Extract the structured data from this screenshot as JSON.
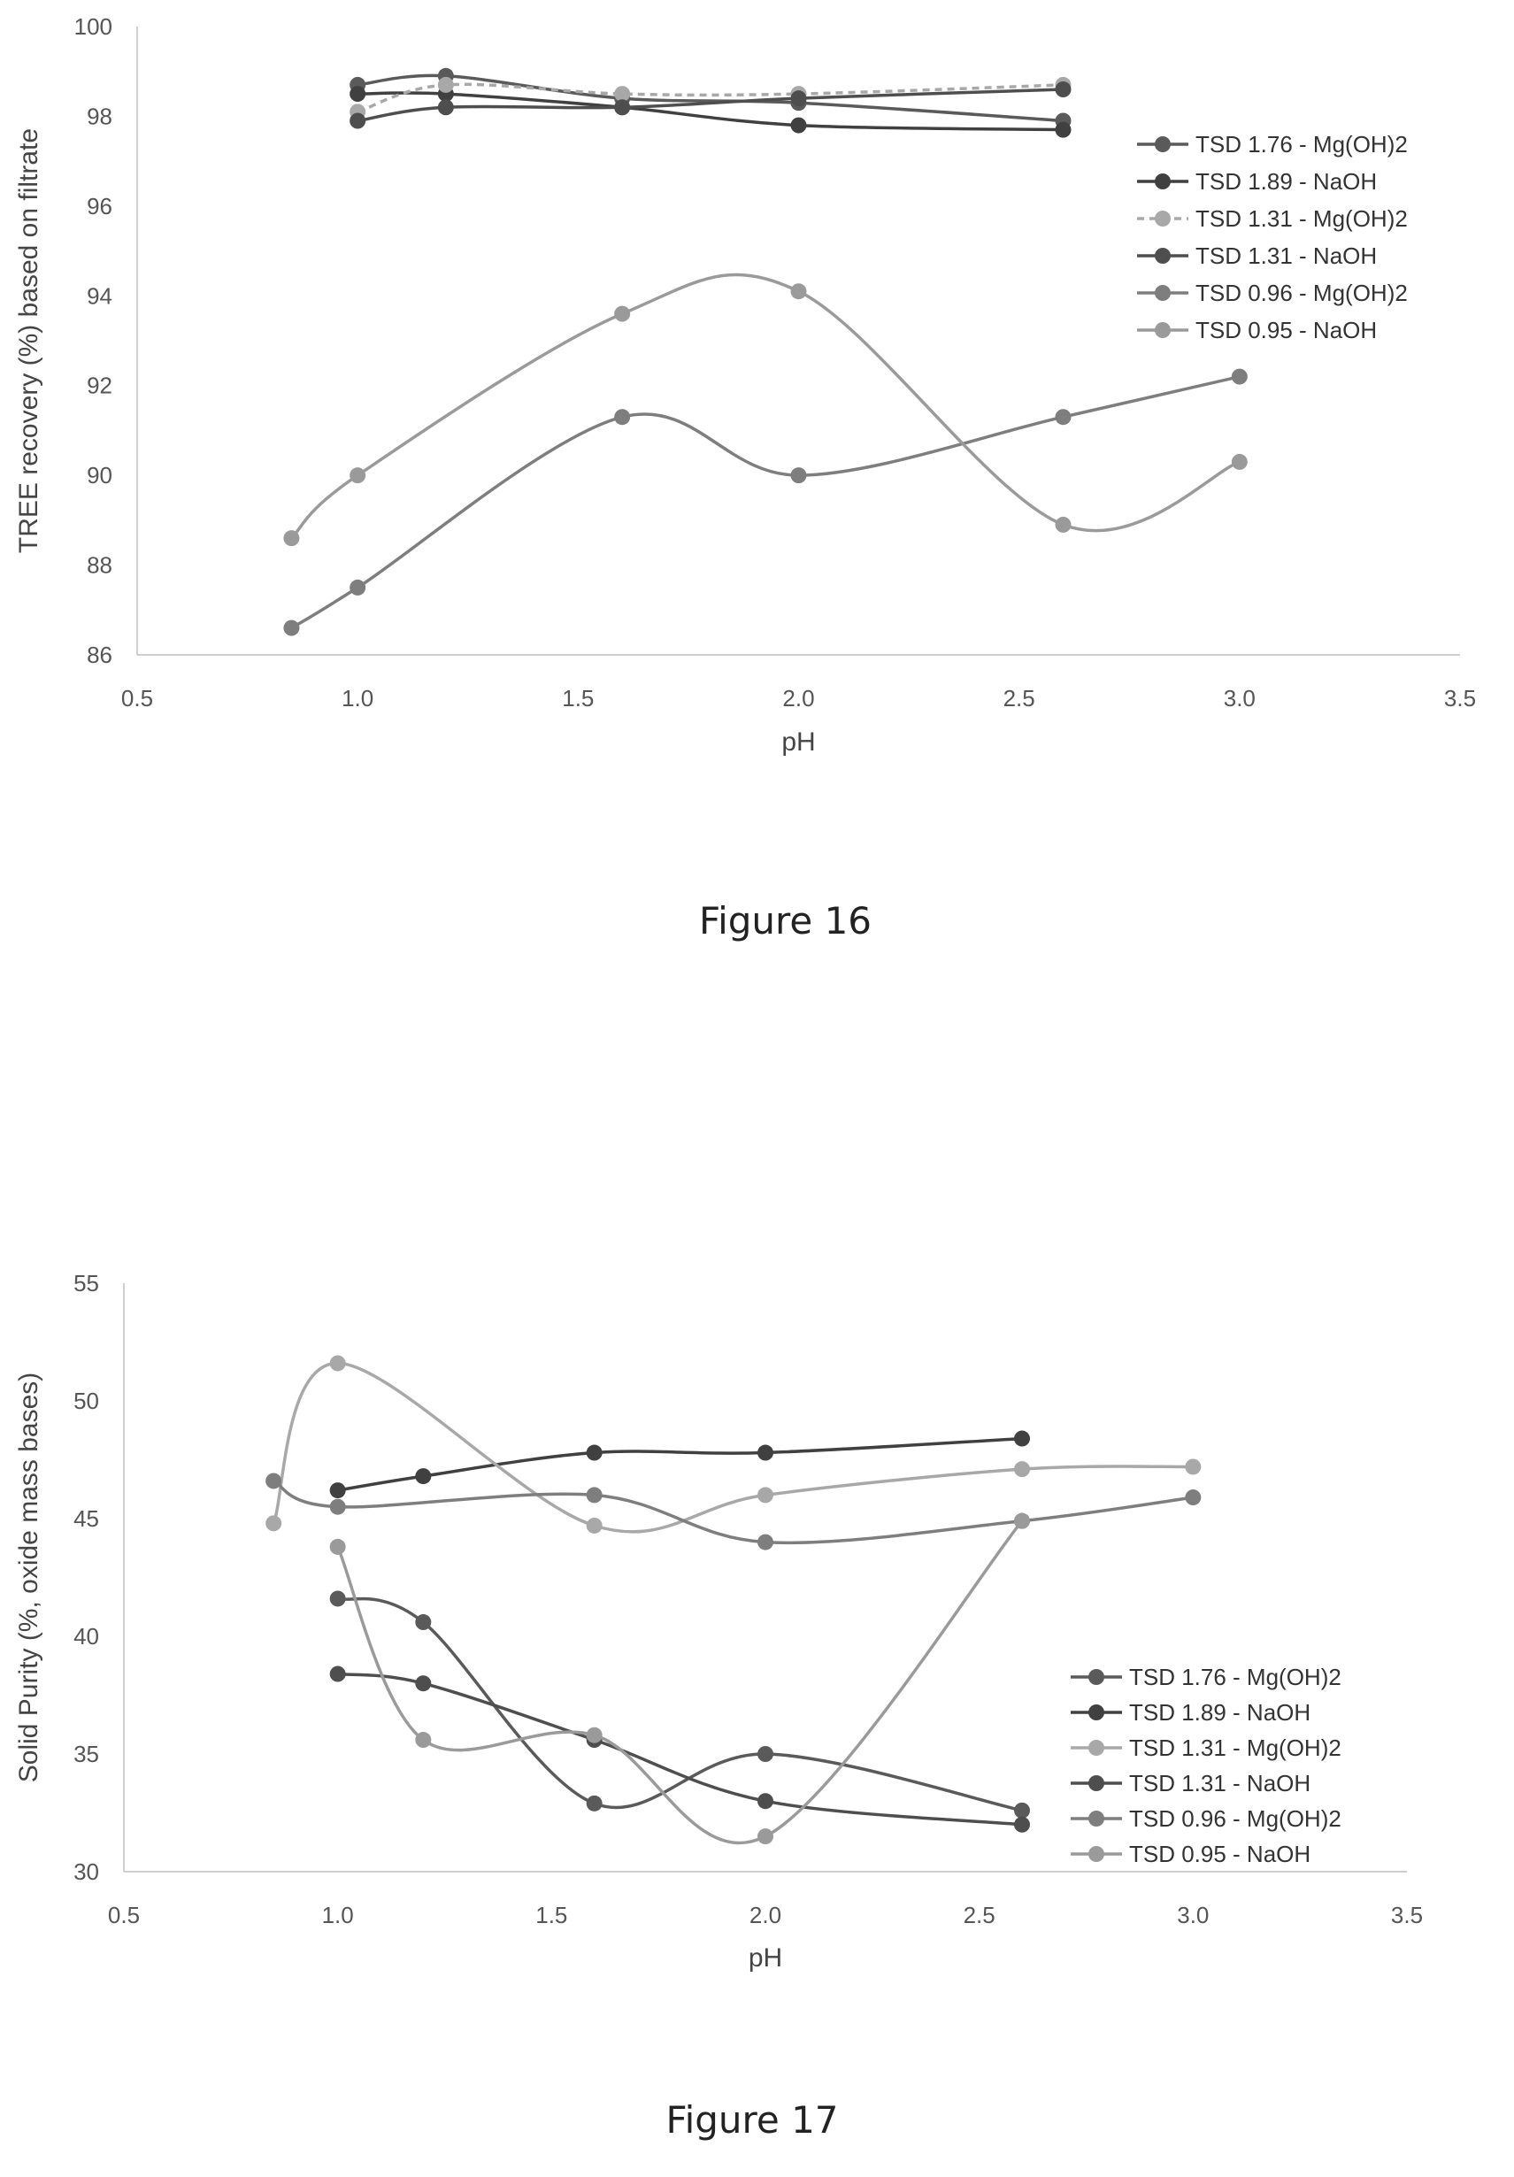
{
  "chart_data": [
    {
      "type": "line",
      "caption": "Figure 16",
      "title": "",
      "xlabel": "pH",
      "ylabel": "TREE recovery (%) based on filtrate",
      "xlim": [
        0.5,
        3.5
      ],
      "ylim": [
        86,
        100
      ],
      "xticks": [
        0.5,
        1.0,
        1.5,
        2.0,
        2.5,
        3.0,
        3.5
      ],
      "xtick_labels": [
        "0.5",
        "1.0",
        "1.5",
        "2.0",
        "2.5",
        "3.0",
        "3.5"
      ],
      "yticks": [
        86,
        88,
        90,
        92,
        94,
        96,
        98,
        100
      ],
      "ytick_labels": [
        "86",
        "88",
        "90",
        "92",
        "94",
        "96",
        "98",
        "100"
      ],
      "grid": false,
      "legend_position": "right",
      "series": [
        {
          "name": "TSD 1.76 - Mg(OH)2",
          "color": "#5a5a5a",
          "dash": "",
          "x": [
            1.0,
            1.2,
            1.6,
            2.0,
            2.6
          ],
          "y": [
            98.7,
            98.9,
            98.4,
            98.3,
            97.9
          ]
        },
        {
          "name": "TSD 1.89 - NaOH",
          "color": "#404040",
          "dash": "",
          "x": [
            1.0,
            1.2,
            1.6,
            2.0,
            2.6
          ],
          "y": [
            98.5,
            98.5,
            98.2,
            97.8,
            97.7
          ]
        },
        {
          "name": "TSD 1.31 - Mg(OH)2",
          "color": "#a8a8a8",
          "dash": "8,6",
          "x": [
            1.0,
            1.2,
            1.6,
            2.0,
            2.6
          ],
          "y": [
            98.1,
            98.7,
            98.5,
            98.5,
            98.7
          ]
        },
        {
          "name": "TSD 1.31 - NaOH",
          "color": "#4e4e4e",
          "dash": "",
          "x": [
            1.0,
            1.2,
            1.6,
            2.0,
            2.6
          ],
          "y": [
            97.9,
            98.2,
            98.2,
            98.4,
            98.6
          ]
        },
        {
          "name": "TSD 0.96 - Mg(OH)2",
          "color": "#7e7e7e",
          "dash": "",
          "x": [
            0.85,
            1.0,
            1.6,
            2.0,
            2.6,
            3.0
          ],
          "y": [
            86.6,
            87.5,
            91.3,
            90.0,
            91.3,
            92.2
          ]
        },
        {
          "name": "TSD 0.95 - NaOH",
          "color": "#9a9a9a",
          "dash": "",
          "x": [
            0.85,
            1.0,
            1.6,
            2.0,
            2.6,
            3.0
          ],
          "y": [
            88.6,
            90.0,
            93.6,
            94.1,
            88.9,
            90.3
          ]
        }
      ]
    },
    {
      "type": "line",
      "caption": "Figure 17",
      "title": "",
      "xlabel": "pH",
      "ylabel": "Solid Purity (%, oxide mass bases)",
      "xlim": [
        0.5,
        3.5
      ],
      "ylim": [
        30,
        55
      ],
      "xticks": [
        0.5,
        1.0,
        1.5,
        2.0,
        2.5,
        3.0,
        3.5
      ],
      "xtick_labels": [
        "0.5",
        "1.0",
        "1.5",
        "2.0",
        "2.5",
        "3.0",
        "3.5"
      ],
      "yticks": [
        30,
        35,
        40,
        45,
        50,
        55
      ],
      "ytick_labels": [
        "30",
        "35",
        "40",
        "45",
        "50",
        "55"
      ],
      "grid": false,
      "legend_position": "right",
      "series": [
        {
          "name": "TSD 1.76 - Mg(OH)2",
          "color": "#5a5a5a",
          "dash": "",
          "x": [
            1.0,
            1.2,
            1.6,
            2.0,
            2.6
          ],
          "y": [
            41.6,
            40.6,
            32.9,
            35.0,
            32.6
          ]
        },
        {
          "name": "TSD 1.89 - NaOH",
          "color": "#404040",
          "dash": "",
          "x": [
            1.0,
            1.2,
            1.6,
            2.0,
            2.6
          ],
          "y": [
            46.2,
            46.8,
            47.8,
            47.8,
            48.4
          ]
        },
        {
          "name": "TSD 1.31 - Mg(OH)2",
          "color": "#a8a8a8",
          "dash": "",
          "x": [
            0.85,
            1.0,
            1.6,
            2.0,
            2.6,
            3.0
          ],
          "y": [
            44.8,
            51.6,
            44.7,
            46.0,
            47.1,
            47.2
          ]
        },
        {
          "name": "TSD 1.31 - NaOH",
          "color": "#4e4e4e",
          "dash": "",
          "x": [
            1.0,
            1.2,
            1.6,
            2.0,
            2.6
          ],
          "y": [
            38.4,
            38.0,
            35.6,
            33.0,
            32.0
          ]
        },
        {
          "name": "TSD 0.96 - Mg(OH)2",
          "color": "#7e7e7e",
          "dash": "",
          "x": [
            0.85,
            1.0,
            1.6,
            2.0,
            2.6,
            3.0
          ],
          "y": [
            46.6,
            45.5,
            46.0,
            44.0,
            44.9,
            45.9
          ]
        },
        {
          "name": "TSD 0.95 - NaOH",
          "color": "#9a9a9a",
          "dash": "",
          "x": [
            1.0,
            1.2,
            1.6,
            2.0,
            2.6
          ],
          "y": [
            43.8,
            35.6,
            35.8,
            31.5,
            44.9
          ]
        }
      ]
    }
  ]
}
